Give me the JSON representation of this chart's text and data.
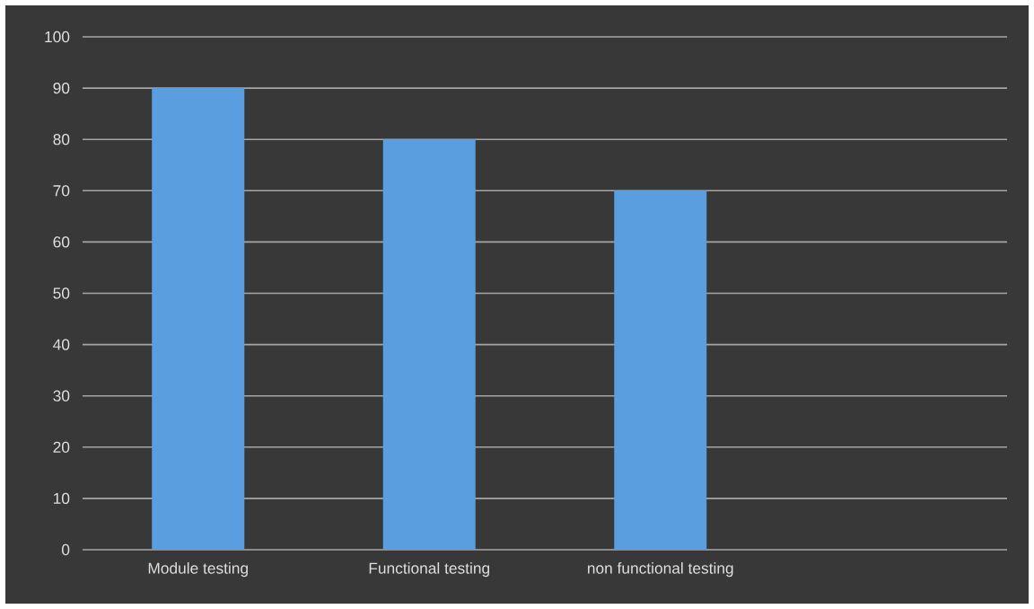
{
  "chart_data": {
    "type": "bar",
    "categories": [
      "Module testing",
      "Functional testing",
      "non functional testing",
      null
    ],
    "values": [
      90,
      80,
      70,
      null
    ],
    "color": "#5b9ee0",
    "ylim": [
      0,
      100
    ],
    "yticks": [
      0,
      10,
      20,
      30,
      40,
      50,
      60,
      70,
      80,
      90,
      100
    ],
    "grid": "y"
  }
}
